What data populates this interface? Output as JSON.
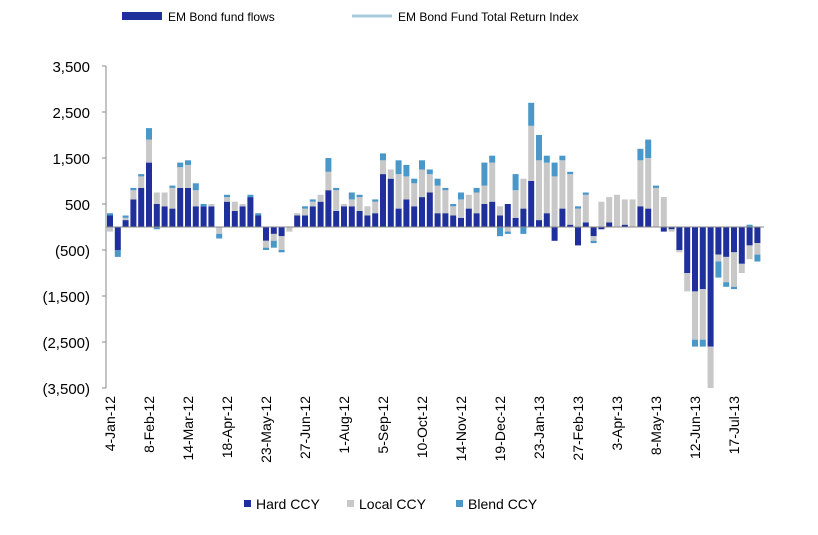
{
  "chart_data": {
    "type": "stacked_bar",
    "top_legend": [
      {
        "name": "EM Bond fund flows",
        "color": "#1f2f9b",
        "shape": "box"
      },
      {
        "name": "EM Bond Fund Total Return Index",
        "color": "#a8cbe0",
        "shape": "line"
      }
    ],
    "categories": [
      "4-Jan-12",
      null,
      null,
      null,
      null,
      "8-Feb-12",
      null,
      null,
      null,
      null,
      "14-Mar-12",
      null,
      null,
      null,
      null,
      "18-Apr-12",
      null,
      null,
      null,
      null,
      "23-May-12",
      null,
      null,
      null,
      null,
      "27-Jun-12",
      null,
      null,
      null,
      null,
      "1-Aug-12",
      null,
      null,
      null,
      null,
      "5-Sep-12",
      null,
      null,
      null,
      null,
      "10-Oct-12",
      null,
      null,
      null,
      null,
      "14-Nov-12",
      null,
      null,
      null,
      null,
      "19-Dec-12",
      null,
      null,
      null,
      null,
      "23-Jan-13",
      null,
      null,
      null,
      null,
      "27-Feb-13",
      null,
      null,
      null,
      null,
      "3-Apr-13",
      null,
      null,
      null,
      null,
      "8-May-13",
      null,
      null,
      null,
      null,
      "12-Jun-13",
      null,
      null,
      null,
      null,
      "17-Jul-13",
      null,
      null,
      null
    ],
    "series": [
      {
        "name": "Hard CCY",
        "color": "#1f2f9b",
        "values": [
          250,
          -500,
          150,
          600,
          850,
          1400,
          500,
          450,
          400,
          850,
          850,
          450,
          450,
          450,
          0,
          550,
          350,
          450,
          650,
          250,
          -300,
          -150,
          -200,
          0,
          250,
          250,
          450,
          550,
          800,
          350,
          450,
          450,
          350,
          250,
          300,
          1150,
          1050,
          400,
          600,
          450,
          650,
          750,
          300,
          300,
          250,
          200,
          400,
          300,
          500,
          550,
          250,
          500,
          200,
          400,
          1000,
          150,
          300,
          -300,
          400,
          50,
          -400,
          100,
          -200,
          -50,
          100,
          0,
          50,
          0,
          450,
          400,
          0,
          -100,
          -50,
          -500,
          -1000,
          -1400,
          -1350,
          -2600,
          -600,
          -650,
          -550,
          -800,
          -400,
          -350
        ]
      },
      {
        "name": "Local CCY",
        "color": "#c8c8c8",
        "values": [
          -100,
          0,
          50,
          200,
          250,
          500,
          250,
          300,
          450,
          450,
          500,
          350,
          0,
          50,
          -150,
          100,
          200,
          50,
          0,
          0,
          -150,
          -150,
          -300,
          -100,
          50,
          150,
          100,
          150,
          400,
          450,
          50,
          150,
          300,
          200,
          250,
          300,
          200,
          750,
          500,
          500,
          600,
          400,
          600,
          500,
          200,
          400,
          300,
          450,
          400,
          850,
          200,
          -100,
          600,
          650,
          1200,
          1300,
          1100,
          1100,
          1050,
          1100,
          400,
          600,
          -100,
          550,
          550,
          700,
          550,
          600,
          1000,
          1100,
          850,
          650,
          -50,
          -50,
          -400,
          -1050,
          -1100,
          -900,
          -150,
          -550,
          -750,
          -200,
          -300,
          -250
        ]
      },
      {
        "name": "Blend CCY",
        "color": "#4a97c9",
        "values": [
          50,
          -150,
          50,
          50,
          50,
          250,
          -50,
          0,
          50,
          100,
          100,
          150,
          50,
          0,
          -100,
          50,
          0,
          0,
          50,
          50,
          -50,
          -150,
          -50,
          0,
          0,
          50,
          50,
          0,
          300,
          50,
          0,
          150,
          50,
          0,
          50,
          150,
          0,
          300,
          250,
          100,
          200,
          100,
          150,
          50,
          50,
          150,
          0,
          100,
          500,
          150,
          -200,
          -50,
          350,
          -150,
          500,
          550,
          150,
          300,
          100,
          50,
          50,
          50,
          -50,
          0,
          0,
          0,
          0,
          0,
          250,
          400,
          50,
          0,
          0,
          0,
          0,
          -150,
          -150,
          0,
          -350,
          -100,
          -50,
          0,
          50,
          -150
        ]
      }
    ],
    "ylim": [
      -3500,
      3500
    ],
    "yticks": [
      {
        "value": 3500,
        "label": "3,500"
      },
      {
        "value": 2500,
        "label": "2,500"
      },
      {
        "value": 1500,
        "label": "1,500"
      },
      500,
      {
        "value": -500,
        "label": "(500)"
      },
      {
        "value": -1500,
        "label": "(1,500)"
      },
      {
        "value": -2500,
        "label": "(2,500)"
      },
      {
        "value": -3500,
        "label": "(3,500)"
      }
    ],
    "negative_tick_color": "#e00000"
  }
}
